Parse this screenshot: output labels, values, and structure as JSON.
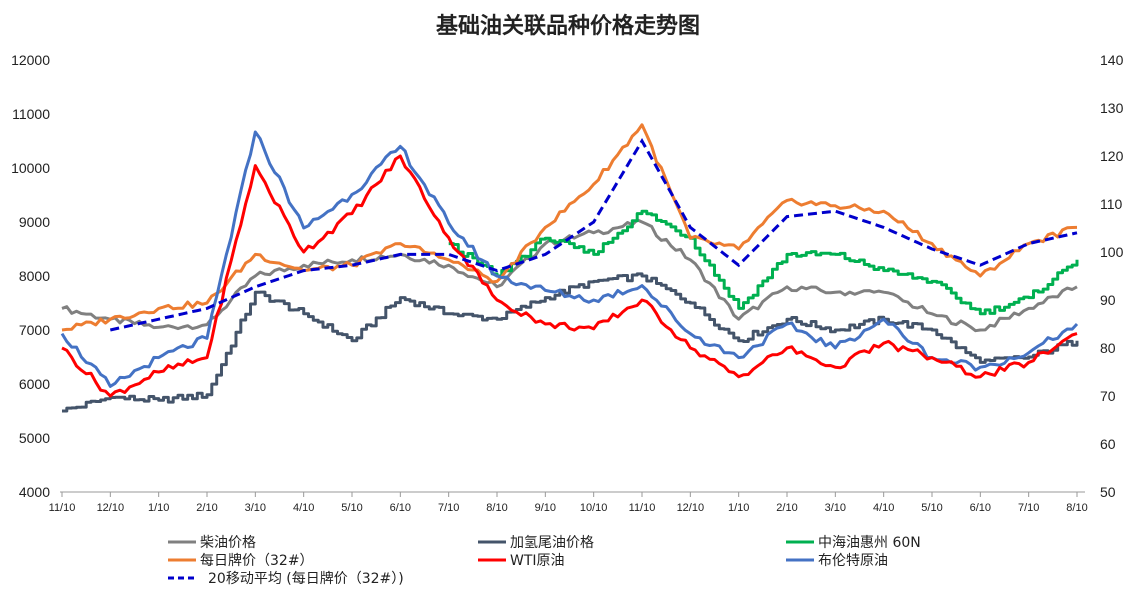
{
  "chart_data": {
    "type": "line",
    "title": "基础油关联品种价格走势图",
    "x": [
      "11/10",
      "12/10",
      "1/10",
      "2/10",
      "3/10",
      "4/10",
      "5/10",
      "6/10",
      "7/10",
      "8/10",
      "9/10",
      "10/10",
      "11/10",
      "12/10",
      "1/10",
      "2/10",
      "3/10",
      "4/10",
      "5/10",
      "6/10",
      "7/10",
      "8/10"
    ],
    "ylim_left": [
      4000,
      12000
    ],
    "yticks_left": [
      "4000",
      "5000",
      "6000",
      "7000",
      "8000",
      "9000",
      "10000",
      "11000",
      "12000"
    ],
    "ylim_right": [
      50,
      140
    ],
    "yticks_right": [
      "50",
      "60",
      "70",
      "80",
      "90",
      "100",
      "110",
      "120",
      "130",
      "140"
    ],
    "grid": false,
    "legend_position": "bottom",
    "series": [
      {
        "name": "柴油价格",
        "axis": "left",
        "color": "#808080",
        "style": "solid",
        "values": [
          7400,
          7200,
          7050,
          7100,
          8000,
          8200,
          8300,
          8400,
          8200,
          7800,
          8600,
          8800,
          9000,
          8300,
          7200,
          7800,
          7700,
          7700,
          7300,
          7000,
          7400,
          7800
        ]
      },
      {
        "name": "加氢尾油价格",
        "axis": "left",
        "color": "#44546a",
        "style": "solid",
        "values": [
          5500,
          5750,
          5700,
          5800,
          7700,
          7300,
          6800,
          7600,
          7300,
          7200,
          7600,
          7900,
          8000,
          7500,
          6800,
          7200,
          7000,
          7200,
          7000,
          6400,
          6500,
          6800
        ]
      },
      {
        "name": "中海油惠州 60N",
        "axis": "left",
        "color": "#00b050",
        "style": "solid",
        "values": [
          null,
          null,
          null,
          null,
          null,
          null,
          null,
          null,
          8600,
          8000,
          8700,
          8400,
          9200,
          8700,
          7400,
          8400,
          8400,
          8100,
          7900,
          7300,
          7600,
          8300
        ]
      },
      {
        "name": "每日牌价（32#）",
        "axis": "left",
        "color": "#ed7d31",
        "style": "solid",
        "values": [
          7000,
          7200,
          7400,
          7500,
          8400,
          8100,
          8200,
          8600,
          8300,
          7900,
          8900,
          9700,
          10800,
          8700,
          8500,
          9400,
          9300,
          9200,
          8600,
          8000,
          8600,
          8900
        ]
      },
      {
        "name": "WTI原油",
        "axis": "right",
        "color": "#ff0000",
        "style": "solid",
        "values": [
          80,
          70,
          75,
          78,
          118,
          100,
          108,
          120,
          103,
          90,
          85,
          84,
          90,
          80,
          74,
          80,
          76,
          81,
          78,
          74,
          77,
          83
        ]
      },
      {
        "name": "布伦特原油",
        "axis": "right",
        "color": "#4472c4",
        "style": "solid",
        "values": [
          83,
          72,
          78,
          82,
          125,
          105,
          112,
          122,
          106,
          95,
          92,
          90,
          93,
          83,
          78,
          85,
          80,
          86,
          78,
          76,
          79,
          85
        ]
      },
      {
        "name": "20移动平均 (每日牌价（32#）)",
        "axis": "left",
        "color": "#0000cc",
        "style": "dashed",
        "values": [
          null,
          7000,
          7200,
          7400,
          7800,
          8100,
          8200,
          8400,
          8400,
          8100,
          8400,
          9000,
          10500,
          8900,
          8200,
          9100,
          9200,
          8900,
          8500,
          8200,
          8600,
          8800
        ]
      }
    ]
  }
}
